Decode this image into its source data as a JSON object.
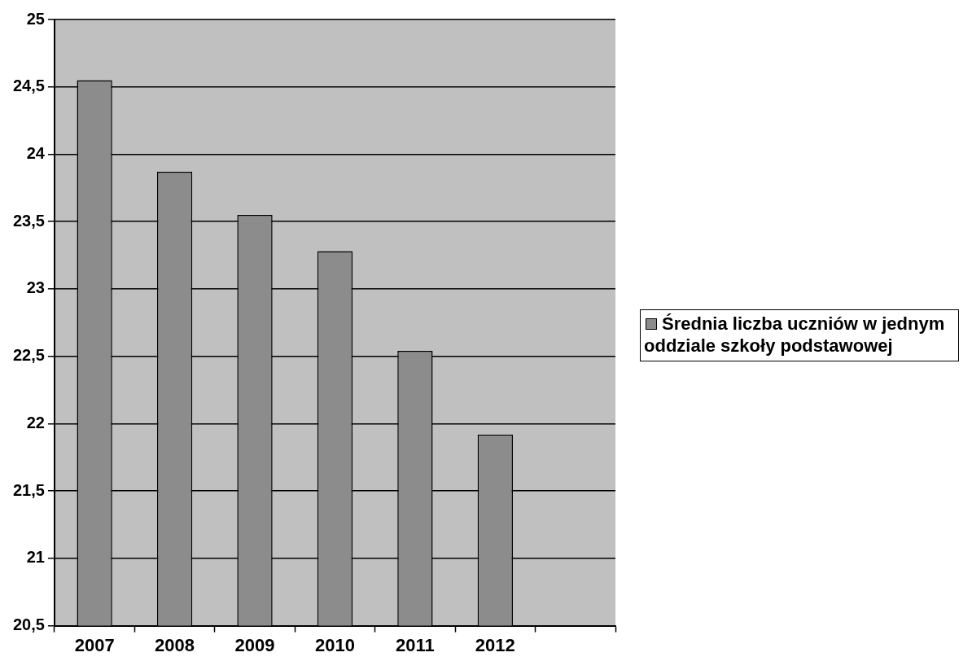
{
  "chart_data": {
    "type": "bar",
    "categories": [
      "2007",
      "2008",
      "2009",
      "2010",
      "2011",
      "2012",
      null
    ],
    "series": [
      {
        "name": "Średnia liczba uczniów w jednym oddziale szkoły podstawowej",
        "color": "#8c8c8c",
        "values": [
          24.55,
          23.87,
          23.55,
          23.28,
          22.54,
          21.92,
          null
        ]
      }
    ],
    "ylim": [
      20.5,
      25
    ],
    "yticks": [
      {
        "value": 20.5,
        "label": "20,5"
      },
      21,
      {
        "value": 21.5,
        "label": "21,5"
      },
      22,
      {
        "value": 22.5,
        "label": "22,5"
      },
      23,
      {
        "value": 23.5,
        "label": "23,5"
      },
      24,
      {
        "value": 24.5,
        "label": "24,5"
      },
      25
    ],
    "grid": "y",
    "legend": "right"
  }
}
